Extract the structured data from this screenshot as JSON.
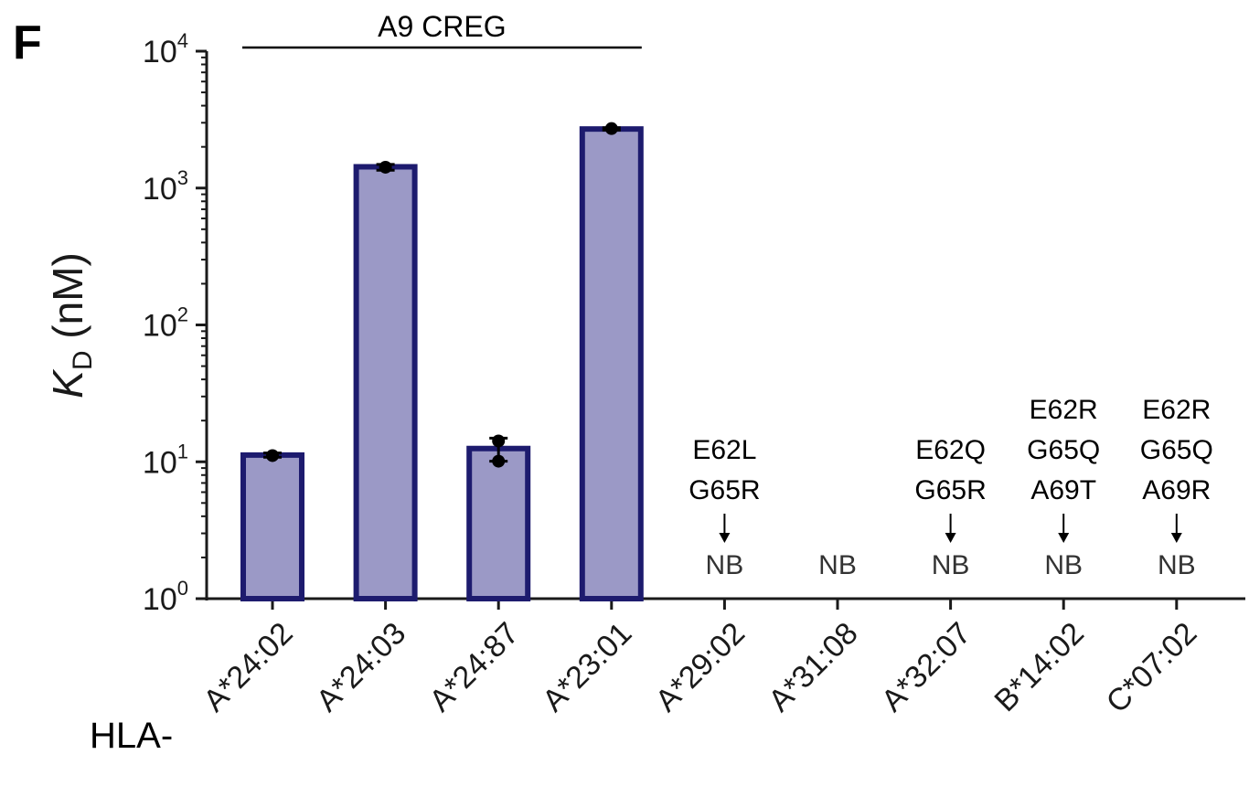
{
  "panel_label": "F",
  "x_prefix": "HLA-",
  "chart_data": {
    "type": "bar",
    "yscale": "log",
    "ylim": [
      1,
      10000
    ],
    "ylabel": {
      "main": "K",
      "sub": "D",
      "rest": " (nM)"
    },
    "yticks": [
      {
        "base": "10",
        "exp": "0",
        "value": 1
      },
      {
        "base": "10",
        "exp": "1",
        "value": 10
      },
      {
        "base": "10",
        "exp": "2",
        "value": 100
      },
      {
        "base": "10",
        "exp": "3",
        "value": 1000
      },
      {
        "base": "10",
        "exp": "4",
        "value": 10000
      }
    ],
    "categories": [
      "A*24:02",
      "A*24:03",
      "A*24:87",
      "A*23:01",
      "A*29:02",
      "A*31:08",
      "A*32:07",
      "B*14:02",
      "C*07:02"
    ],
    "values": [
      11.2,
      1430,
      12.5,
      2700,
      null,
      null,
      null,
      null,
      null
    ],
    "points": [
      [
        11.1
      ],
      [
        1420
      ],
      [
        14.2,
        10.1
      ],
      [
        2720
      ],
      [],
      [],
      [],
      [],
      []
    ],
    "error_bars": [
      [
        10.8,
        11.6
      ],
      [
        1350,
        1490
      ],
      [
        10.1,
        14.9
      ],
      [
        2650,
        2760
      ],
      null,
      null,
      null,
      null,
      null
    ],
    "no_binding_label": "NB",
    "annotations": [
      {
        "category": "A*29:02",
        "lines": [
          "E62L",
          "G65R"
        ]
      },
      {
        "category": "A*32:07",
        "lines": [
          "E62Q",
          "G65R"
        ]
      },
      {
        "category": "B*14:02",
        "lines": [
          "E62R",
          "G65Q",
          "A69T"
        ]
      },
      {
        "category": "C*07:02",
        "lines": [
          "E62R",
          "G65Q",
          "A69R"
        ]
      }
    ],
    "bracket": {
      "label": "A9 CREG",
      "from": "A*24:02",
      "to": "A*23:01"
    },
    "colors": {
      "bar_fill": "#9b99c6",
      "bar_edge": "#1d1b6e",
      "point": "#000000",
      "axis": "#1a1a1a"
    }
  }
}
